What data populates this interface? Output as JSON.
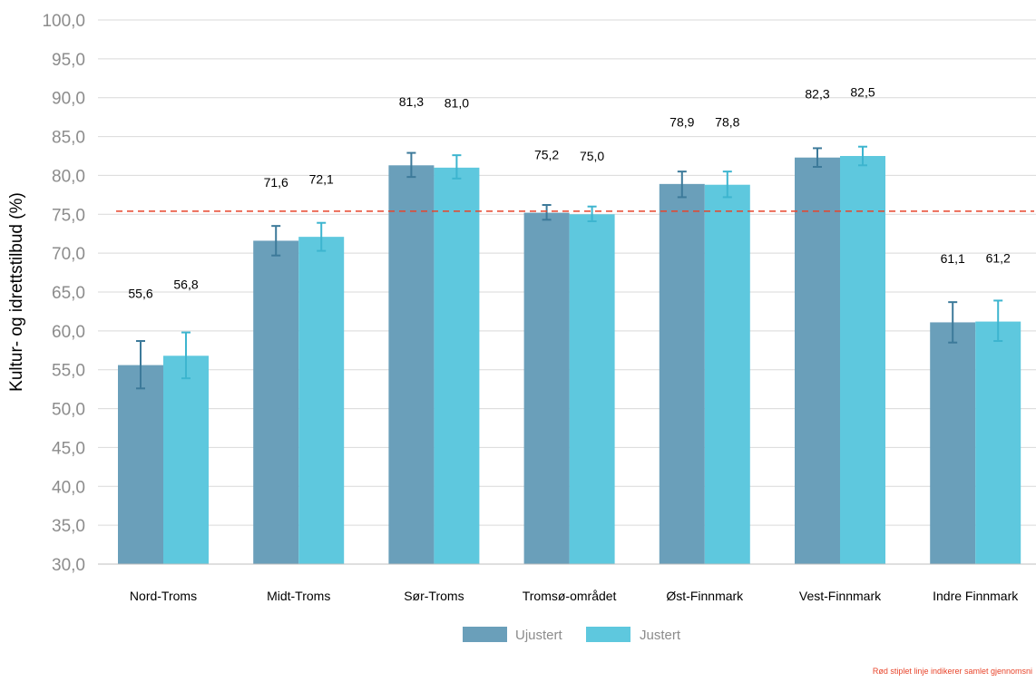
{
  "chart_data": {
    "type": "bar",
    "ylabel": "Kultur- og idrettstilbud (%)",
    "ylim": [
      30,
      100
    ],
    "ytick_step": 5,
    "ytick_labels": [
      "30,0",
      "35,0",
      "40,0",
      "45,0",
      "50,0",
      "55,0",
      "60,0",
      "65,0",
      "70,0",
      "75,0",
      "80,0",
      "85,0",
      "90,0",
      "95,0",
      "100,0"
    ],
    "grid": "horizontal",
    "legend_position": "bottom-center",
    "categories": [
      "Nord-Troms",
      "Midt-Troms",
      "Sør-Troms",
      "Tromsø-området",
      "Øst-Finnmark",
      "Vest-Finnmark",
      "Indre Finnmark"
    ],
    "series": [
      {
        "name": "Ujustert",
        "color": "#6a9fba",
        "error_color": "#3d7a9a",
        "values": [
          55.6,
          71.6,
          81.3,
          75.2,
          78.9,
          82.3,
          61.1
        ],
        "labels": [
          "55,6",
          "71,6",
          "81,3",
          "75,2",
          "78,9",
          "82,3",
          "61,1"
        ],
        "error_low": [
          52.6,
          69.7,
          79.8,
          74.3,
          77.2,
          81.1,
          58.5
        ],
        "error_high": [
          58.7,
          73.5,
          82.9,
          76.2,
          80.5,
          83.5,
          63.7
        ],
        "label_y": [
          64.8,
          79.1,
          89.5,
          82.7,
          86.9,
          90.5,
          69.3
        ]
      },
      {
        "name": "Justert",
        "color": "#5ec8de",
        "error_color": "#3db5cf",
        "values": [
          56.8,
          72.1,
          81.0,
          75.0,
          78.8,
          82.5,
          61.2
        ],
        "labels": [
          "56,8",
          "72,1",
          "81,0",
          "75,0",
          "78,8",
          "82,5",
          "61,2"
        ],
        "error_low": [
          53.9,
          70.3,
          79.6,
          74.1,
          77.2,
          81.3,
          58.7
        ],
        "error_high": [
          59.8,
          73.9,
          82.6,
          76.0,
          80.5,
          83.7,
          63.9
        ],
        "label_y": [
          66.0,
          79.5,
          89.3,
          82.5,
          86.9,
          90.7,
          69.4
        ]
      }
    ],
    "reference_line": {
      "value": 75.4,
      "color": "#e8442a",
      "style": "dashed"
    },
    "footnote": "Rød stiplet linje indikerer samlet gjennomsni"
  }
}
